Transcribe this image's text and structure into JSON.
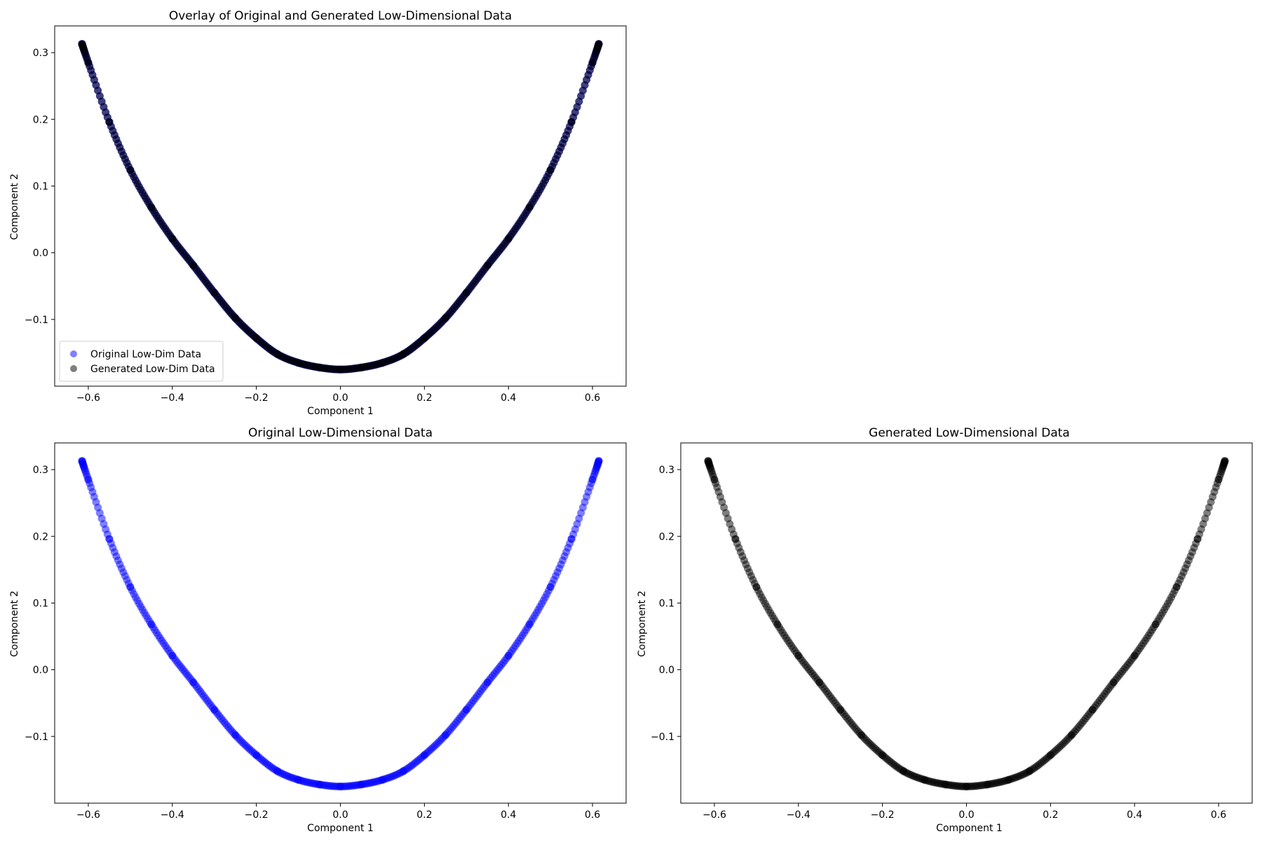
{
  "chart_data": [
    {
      "type": "scatter",
      "title": "Overlay of Original and Generated Low-Dimensional Data",
      "xlabel": "Component 1",
      "ylabel": "Component 2",
      "xlim": [
        -0.68,
        0.68
      ],
      "ylim": [
        -0.2,
        0.34
      ],
      "xticks": [
        -0.6,
        -0.4,
        -0.2,
        0.0,
        0.2,
        0.4,
        0.6
      ],
      "xtick_labels": [
        "−0.6",
        "−0.4",
        "−0.2",
        "0.0",
        "0.2",
        "0.4",
        "0.6"
      ],
      "yticks": [
        -0.1,
        0.0,
        0.1,
        0.2,
        0.3
      ],
      "ytick_labels": [
        "−0.1",
        "0.0",
        "0.1",
        "0.2",
        "0.3"
      ],
      "legend": {
        "placement": "lower-left",
        "entries": [
          {
            "label": "Original Low-Dim Data",
            "color": "#0000ff",
            "alpha": 0.5
          },
          {
            "label": "Generated Low-Dim Data",
            "color": "#000000",
            "alpha": 0.5
          }
        ]
      },
      "series": [
        {
          "name": "Original Low-Dim Data",
          "color": "#0000ff",
          "x": [
            -0.615,
            -0.6,
            -0.55,
            -0.5,
            -0.45,
            -0.4,
            -0.35,
            -0.3,
            -0.25,
            -0.2,
            -0.15,
            -0.1,
            -0.05,
            0.0,
            0.05,
            0.1,
            0.15,
            0.2,
            0.25,
            0.3,
            0.35,
            0.4,
            0.45,
            0.5,
            0.55,
            0.6,
            0.615
          ],
          "y": [
            0.313,
            0.285,
            0.196,
            0.124,
            0.068,
            0.021,
            -0.019,
            -0.06,
            -0.098,
            -0.128,
            -0.152,
            -0.165,
            -0.172,
            -0.175,
            -0.172,
            -0.165,
            -0.152,
            -0.128,
            -0.098,
            -0.06,
            -0.019,
            0.021,
            0.068,
            0.124,
            0.196,
            0.285,
            0.313
          ]
        },
        {
          "name": "Generated Low-Dim Data",
          "color": "#000000",
          "x": [
            -0.615,
            -0.6,
            -0.55,
            -0.5,
            -0.45,
            -0.4,
            -0.35,
            -0.3,
            -0.25,
            -0.2,
            -0.15,
            -0.1,
            -0.05,
            0.0,
            0.05,
            0.1,
            0.15,
            0.2,
            0.25,
            0.3,
            0.35,
            0.4,
            0.45,
            0.5,
            0.55,
            0.6,
            0.615
          ],
          "y": [
            0.313,
            0.285,
            0.196,
            0.124,
            0.068,
            0.021,
            -0.019,
            -0.06,
            -0.098,
            -0.128,
            -0.152,
            -0.165,
            -0.172,
            -0.175,
            -0.172,
            -0.165,
            -0.152,
            -0.128,
            -0.098,
            -0.06,
            -0.019,
            0.021,
            0.068,
            0.124,
            0.196,
            0.285,
            0.313
          ]
        }
      ]
    },
    {
      "type": "scatter",
      "title": "Original Low-Dimensional Data",
      "xlabel": "Component 1",
      "ylabel": "Component 2",
      "xlim": [
        -0.68,
        0.68
      ],
      "ylim": [
        -0.2,
        0.34
      ],
      "xticks": [
        -0.6,
        -0.4,
        -0.2,
        0.0,
        0.2,
        0.4,
        0.6
      ],
      "xtick_labels": [
        "−0.6",
        "−0.4",
        "−0.2",
        "0.0",
        "0.2",
        "0.4",
        "0.6"
      ],
      "yticks": [
        -0.1,
        0.0,
        0.1,
        0.2,
        0.3
      ],
      "ytick_labels": [
        "−0.1",
        "0.0",
        "0.1",
        "0.2",
        "0.3"
      ],
      "series": [
        {
          "color": "#0000ff",
          "x": [
            -0.615,
            -0.6,
            -0.55,
            -0.5,
            -0.45,
            -0.4,
            -0.35,
            -0.3,
            -0.25,
            -0.2,
            -0.15,
            -0.1,
            -0.05,
            0.0,
            0.05,
            0.1,
            0.15,
            0.2,
            0.25,
            0.3,
            0.35,
            0.4,
            0.45,
            0.5,
            0.55,
            0.6,
            0.615
          ],
          "y": [
            0.313,
            0.285,
            0.196,
            0.124,
            0.068,
            0.021,
            -0.019,
            -0.06,
            -0.098,
            -0.128,
            -0.152,
            -0.165,
            -0.172,
            -0.175,
            -0.172,
            -0.165,
            -0.152,
            -0.128,
            -0.098,
            -0.06,
            -0.019,
            0.021,
            0.068,
            0.124,
            0.196,
            0.285,
            0.313
          ]
        }
      ]
    },
    {
      "type": "scatter",
      "title": "Generated Low-Dimensional Data",
      "xlabel": "Component 1",
      "ylabel": "Component 2",
      "xlim": [
        -0.68,
        0.68
      ],
      "ylim": [
        -0.2,
        0.34
      ],
      "xticks": [
        -0.6,
        -0.4,
        -0.2,
        0.0,
        0.2,
        0.4,
        0.6
      ],
      "xtick_labels": [
        "−0.6",
        "−0.4",
        "−0.2",
        "0.0",
        "0.2",
        "0.4",
        "0.6"
      ],
      "yticks": [
        -0.1,
        0.0,
        0.1,
        0.2,
        0.3
      ],
      "ytick_labels": [
        "−0.1",
        "0.0",
        "0.1",
        "0.2",
        "0.3"
      ],
      "series": [
        {
          "color": "#000000",
          "x": [
            -0.615,
            -0.6,
            -0.55,
            -0.5,
            -0.45,
            -0.4,
            -0.35,
            -0.3,
            -0.25,
            -0.2,
            -0.15,
            -0.1,
            -0.05,
            0.0,
            0.05,
            0.1,
            0.15,
            0.2,
            0.25,
            0.3,
            0.35,
            0.4,
            0.45,
            0.5,
            0.55,
            0.6,
            0.615
          ],
          "y": [
            0.313,
            0.285,
            0.196,
            0.124,
            0.068,
            0.021,
            -0.019,
            -0.06,
            -0.098,
            -0.128,
            -0.152,
            -0.165,
            -0.172,
            -0.175,
            -0.172,
            -0.165,
            -0.152,
            -0.128,
            -0.098,
            -0.06,
            -0.019,
            0.021,
            0.068,
            0.124,
            0.196,
            0.285,
            0.313
          ]
        }
      ]
    }
  ]
}
